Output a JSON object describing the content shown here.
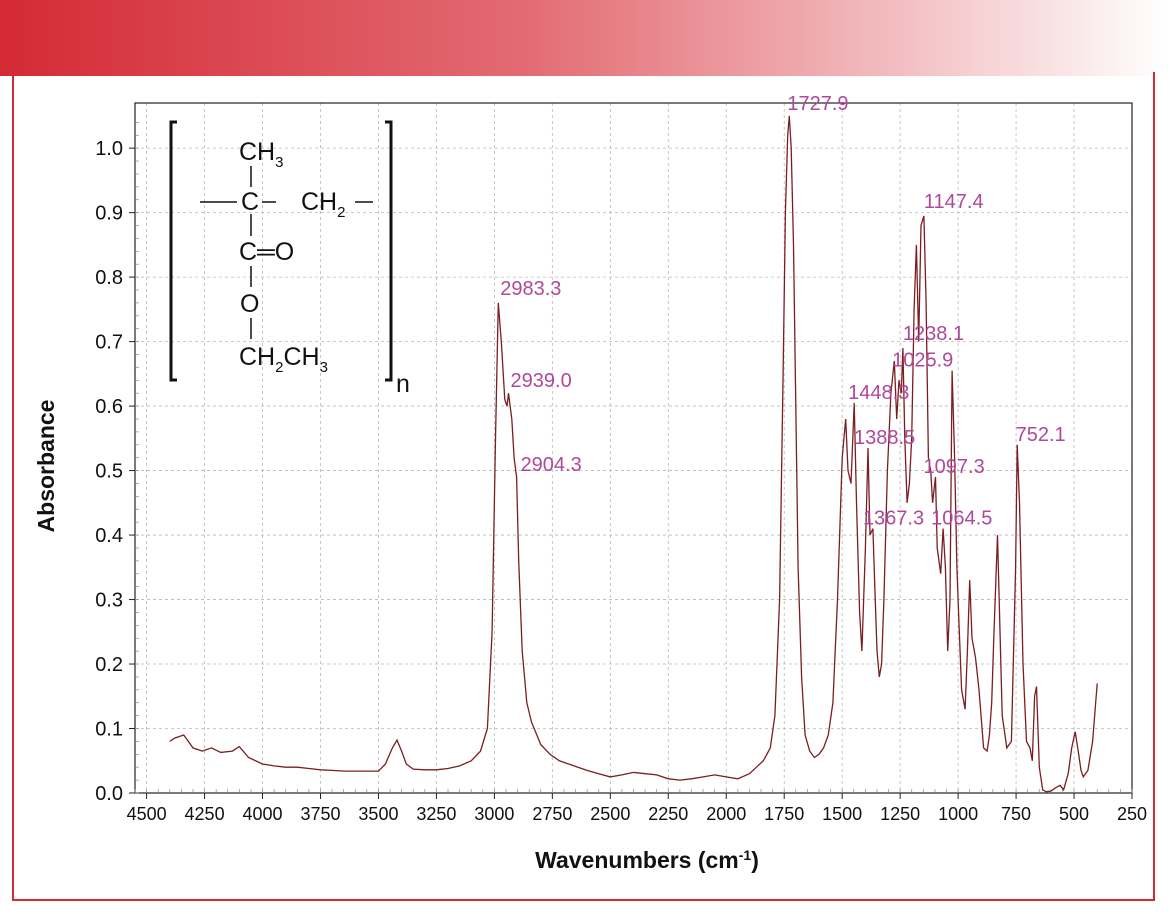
{
  "colors": {
    "banner_start": "#d42a35",
    "frame": "#d42a35",
    "trace": "#7a1e22",
    "peak_label": "#b0489a",
    "grid": "#b8b8b8"
  },
  "structure": {
    "ch3": "CH",
    "ch3_sub": "3",
    "c_center": "C",
    "ch2": "CH",
    "ch2_sub": "2",
    "carbonyl": "C═O",
    "ester_o": "O",
    "ethyl_a": "CH",
    "ethyl_sub_a": "2",
    "ethyl_b": "CH",
    "ethyl_sub_b": "3",
    "repeat_n": "n"
  },
  "chart_data": {
    "type": "line",
    "xlabel_main": "Wavenumbers (cm",
    "xlabel_sup": "-1",
    "xlabel_close": ")",
    "ylabel": "Absorbance",
    "xlim": [
      4550,
      250
    ],
    "ylim": [
      0.0,
      1.07
    ],
    "x_reversed": true,
    "grid": true,
    "x_ticks": [
      4500,
      4250,
      4000,
      3750,
      3500,
      3250,
      3000,
      2750,
      2500,
      2250,
      2000,
      1750,
      1500,
      1250,
      1000,
      750,
      500,
      250
    ],
    "y_ticks": [
      0.0,
      0.1,
      0.2,
      0.3,
      0.4,
      0.5,
      0.6,
      0.7,
      0.8,
      0.9,
      1.0
    ],
    "y_tick_labels": [
      "0.0",
      "0.1",
      "0.2",
      "0.3",
      "0.4",
      "0.5",
      "0.6",
      "0.7",
      "0.8",
      "0.9",
      "1.0"
    ],
    "peak_labels": [
      {
        "text": "2983.3",
        "x": 2983.3,
        "y": 0.76
      },
      {
        "text": "2939.0",
        "x": 2939.0,
        "y": 0.62
      },
      {
        "text": "2904.3",
        "x": 2904.3,
        "y": 0.49
      },
      {
        "text": "1727.9",
        "x": 1727.9,
        "y": 1.05
      },
      {
        "text": "1448.3",
        "x": 1448.3,
        "y": 0.605
      },
      {
        "text": "1388.5",
        "x": 1388.5,
        "y": 0.535
      },
      {
        "text": "1367.3",
        "x": 1367.3,
        "y": 0.41
      },
      {
        "text": "1238.1",
        "x": 1238.1,
        "y": 0.69
      },
      {
        "text": "1147.4",
        "x": 1147.4,
        "y": 0.895
      },
      {
        "text": "1097.3",
        "x": 1097.3,
        "y": 0.49
      },
      {
        "text": "1064.5",
        "x": 1064.5,
        "y": 0.41
      },
      {
        "text": "1025.9",
        "x": 1025.9,
        "y": 0.655
      },
      {
        "text": "752.1",
        "x": 752.1,
        "y": 0.54
      }
    ],
    "series": [
      {
        "x": [
          4400,
          4380,
          4340,
          4300,
          4260,
          4220,
          4180,
          4130,
          4100,
          4060,
          4000,
          3950,
          3900,
          3850,
          3800,
          3750,
          3700,
          3650,
          3600,
          3550,
          3500,
          3470,
          3440,
          3420,
          3400,
          3380,
          3350,
          3300,
          3250,
          3200,
          3150,
          3100,
          3060,
          3030,
          3010,
          2995,
          2983.3,
          2970,
          2955,
          2945,
          2939.0,
          2925,
          2915,
          2904.3,
          2895,
          2880,
          2860,
          2840,
          2800,
          2760,
          2720,
          2680,
          2640,
          2600,
          2550,
          2500,
          2450,
          2400,
          2350,
          2300,
          2250,
          2200,
          2150,
          2100,
          2050,
          2000,
          1950,
          1900,
          1870,
          1840,
          1810,
          1790,
          1770,
          1755,
          1745,
          1735,
          1727.9,
          1720,
          1710,
          1700,
          1690,
          1675,
          1660,
          1640,
          1620,
          1600,
          1580,
          1560,
          1540,
          1520,
          1500,
          1485,
          1475,
          1462,
          1448.3,
          1438,
          1425,
          1415,
          1400,
          1388.5,
          1380,
          1367.3,
          1360,
          1350,
          1340,
          1330,
          1320,
          1305,
          1290,
          1275,
          1265,
          1255,
          1245,
          1238.1,
          1230,
          1220,
          1210,
          1200,
          1190,
          1180,
          1170,
          1160,
          1147.4,
          1138,
          1128,
          1118,
          1110,
          1097.3,
          1090,
          1075,
          1064.5,
          1055,
          1045,
          1035,
          1025.9,
          1015,
          1005,
          995,
          985,
          970,
          960,
          950,
          940,
          925,
          910,
          890,
          875,
          865,
          855,
          845,
          830,
          810,
          790,
          770,
          752.1,
          745,
          735,
          720,
          705,
          690,
          680,
          670,
          662,
          650,
          635,
          620,
          600,
          580,
          560,
          545,
          525,
          510,
          495,
          480,
          470,
          460,
          440,
          420,
          400
        ],
        "y": [
          0.08,
          0.085,
          0.09,
          0.07,
          0.065,
          0.07,
          0.063,
          0.065,
          0.072,
          0.055,
          0.045,
          0.042,
          0.04,
          0.04,
          0.038,
          0.036,
          0.035,
          0.034,
          0.034,
          0.034,
          0.034,
          0.045,
          0.07,
          0.082,
          0.065,
          0.045,
          0.037,
          0.036,
          0.036,
          0.038,
          0.042,
          0.05,
          0.065,
          0.1,
          0.25,
          0.55,
          0.76,
          0.7,
          0.61,
          0.6,
          0.62,
          0.58,
          0.52,
          0.49,
          0.36,
          0.22,
          0.14,
          0.11,
          0.075,
          0.06,
          0.05,
          0.045,
          0.04,
          0.035,
          0.03,
          0.025,
          0.028,
          0.032,
          0.03,
          0.028,
          0.022,
          0.02,
          0.022,
          0.025,
          0.028,
          0.025,
          0.022,
          0.03,
          0.04,
          0.05,
          0.07,
          0.12,
          0.3,
          0.65,
          0.9,
          1.02,
          1.05,
          1.0,
          0.85,
          0.6,
          0.35,
          0.18,
          0.09,
          0.065,
          0.055,
          0.06,
          0.07,
          0.09,
          0.14,
          0.3,
          0.52,
          0.58,
          0.5,
          0.48,
          0.605,
          0.45,
          0.28,
          0.22,
          0.38,
          0.535,
          0.4,
          0.41,
          0.33,
          0.22,
          0.18,
          0.2,
          0.3,
          0.5,
          0.62,
          0.67,
          0.58,
          0.64,
          0.62,
          0.69,
          0.55,
          0.45,
          0.48,
          0.55,
          0.75,
          0.85,
          0.7,
          0.88,
          0.895,
          0.76,
          0.52,
          0.5,
          0.45,
          0.49,
          0.38,
          0.34,
          0.41,
          0.35,
          0.22,
          0.3,
          0.655,
          0.52,
          0.35,
          0.25,
          0.16,
          0.13,
          0.22,
          0.33,
          0.24,
          0.21,
          0.16,
          0.07,
          0.065,
          0.09,
          0.14,
          0.25,
          0.4,
          0.12,
          0.07,
          0.08,
          0.35,
          0.54,
          0.45,
          0.2,
          0.08,
          0.07,
          0.05,
          0.15,
          0.165,
          0.04,
          0.005,
          0.002,
          0.003,
          0.008,
          0.012,
          0.005,
          0.03,
          0.07,
          0.095,
          0.06,
          0.035,
          0.025,
          0.035,
          0.08,
          0.17
        ]
      }
    ]
  }
}
